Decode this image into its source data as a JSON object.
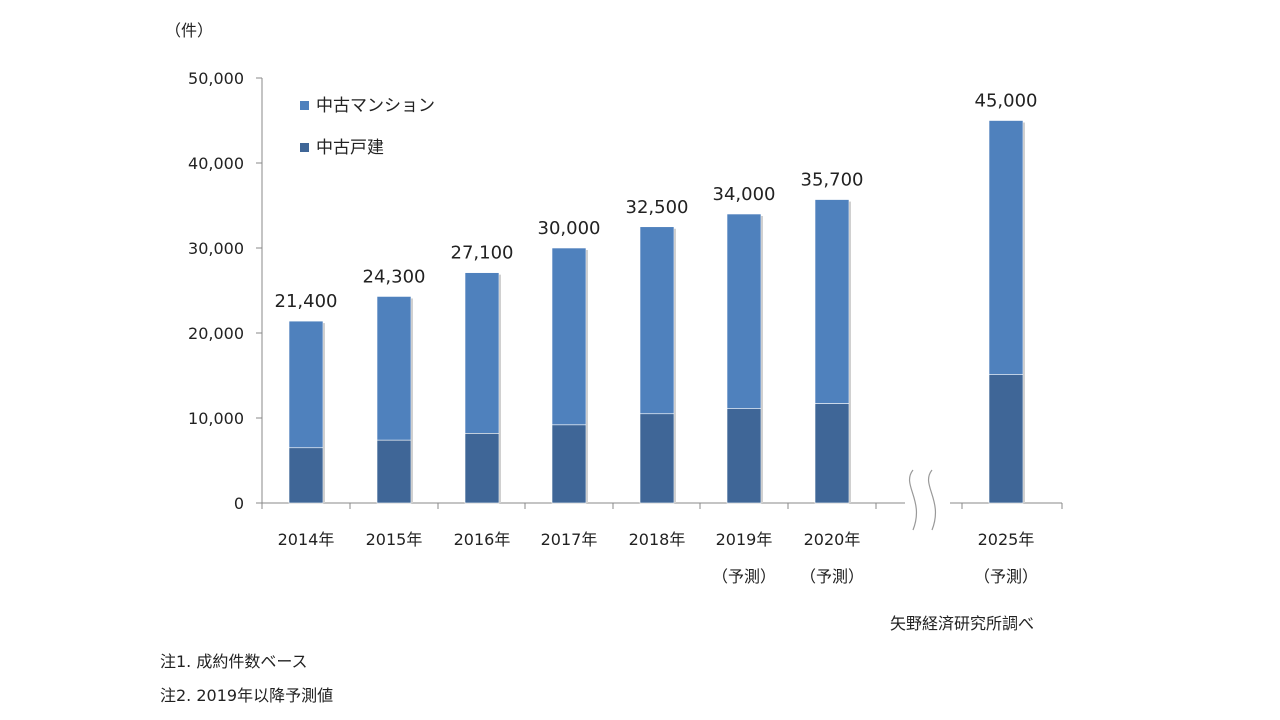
{
  "chart_data": {
    "type": "bar",
    "stacked": true,
    "y_unit_label": "（件）",
    "ylim": [
      0,
      50000
    ],
    "y_ticks": [
      0,
      10000,
      20000,
      30000,
      40000,
      50000
    ],
    "y_tick_labels": [
      "0",
      "10,000",
      "20,000",
      "30,000",
      "40,000",
      "50,000"
    ],
    "categories": [
      "2014年",
      "2015年",
      "2016年",
      "2017年",
      "2018年",
      "2019年",
      "2020年",
      "2025年"
    ],
    "category_sublabels": [
      "",
      "",
      "",
      "",
      "",
      "（予測）",
      "（予測）",
      "（予測）"
    ],
    "axis_break_between": [
      "2020年",
      "2025年"
    ],
    "totals": [
      21400,
      24300,
      27100,
      30000,
      32500,
      34000,
      35700,
      45000
    ],
    "total_labels": [
      "21,400",
      "24,300",
      "27,100",
      "30,000",
      "32,500",
      "34,000",
      "35,700",
      "45,000"
    ],
    "series": [
      {
        "name": "中古戸建",
        "color": "#3f6697",
        "values": [
          6500,
          7400,
          8200,
          9200,
          10500,
          11100,
          11700,
          15100
        ]
      },
      {
        "name": "中古マンション",
        "color": "#4f81bd",
        "values": [
          14900,
          16900,
          18900,
          20800,
          22000,
          22900,
          24000,
          29900
        ]
      }
    ],
    "legend": {
      "placement": "top-left",
      "items": [
        {
          "label": "中古マンション",
          "color": "#4f81bd"
        },
        {
          "label": "中古戸建",
          "color": "#3f6697"
        }
      ]
    }
  },
  "source": "矢野経済研究所調べ",
  "notes": [
    "注1. 成約件数ベース",
    "注2. 2019年以降予測値"
  ]
}
